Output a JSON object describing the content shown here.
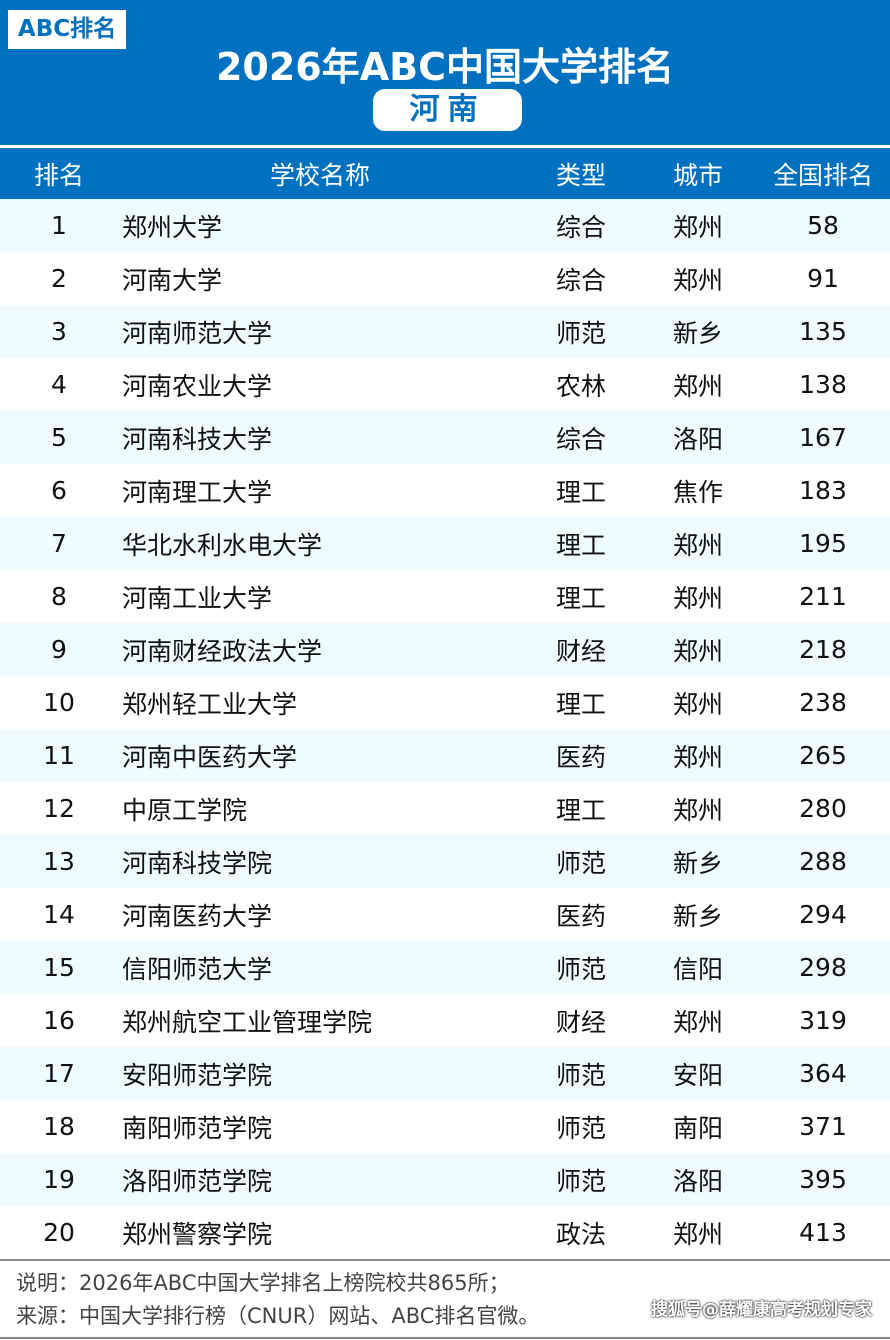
{
  "logo": "ABC排名",
  "title": "2026年ABC中国大学排名",
  "province": "河南",
  "columns": [
    "排名",
    "学校名称",
    "类型",
    "城市",
    "全国排名"
  ],
  "rows": [
    [
      "1",
      "郑州大学",
      "综合",
      "郑州",
      "58"
    ],
    [
      "2",
      "河南大学",
      "综合",
      "郑州",
      "91"
    ],
    [
      "3",
      "河南师范大学",
      "师范",
      "新乡",
      "135"
    ],
    [
      "4",
      "河南农业大学",
      "农林",
      "郑州",
      "138"
    ],
    [
      "5",
      "河南科技大学",
      "综合",
      "洛阳",
      "167"
    ],
    [
      "6",
      "河南理工大学",
      "理工",
      "焦作",
      "183"
    ],
    [
      "7",
      "华北水利水电大学",
      "理工",
      "郑州",
      "195"
    ],
    [
      "8",
      "河南工业大学",
      "理工",
      "郑州",
      "211"
    ],
    [
      "9",
      "河南财经政法大学",
      "财经",
      "郑州",
      "218"
    ],
    [
      "10",
      "郑州轻工业大学",
      "理工",
      "郑州",
      "238"
    ],
    [
      "11",
      "河南中医药大学",
      "医药",
      "郑州",
      "265"
    ],
    [
      "12",
      "中原工学院",
      "理工",
      "郑州",
      "280"
    ],
    [
      "13",
      "河南科技学院",
      "师范",
      "新乡",
      "288"
    ],
    [
      "14",
      "河南医药大学",
      "医药",
      "新乡",
      "294"
    ],
    [
      "15",
      "信阳师范大学",
      "师范",
      "信阳",
      "298"
    ],
    [
      "16",
      "郑州航空工业管理学院",
      "财经",
      "郑州",
      "319"
    ],
    [
      "17",
      "安阳师范学院",
      "师范",
      "安阳",
      "364"
    ],
    [
      "18",
      "南阳师范学院",
      "师范",
      "南阳",
      "371"
    ],
    [
      "19",
      "洛阳师范学院",
      "师范",
      "洛阳",
      "395"
    ],
    [
      "20",
      "郑州警察学院",
      "政法",
      "郑州",
      "413"
    ]
  ],
  "footer": {
    "note": "说明：2026年ABC中国大学排名上榜院校共865所；",
    "source": "来源：中国大学排行榜（CNUR）网站、ABC排名官微。",
    "watermark": "搜狐号@薛耀康高考规划专家"
  },
  "colors": {
    "brand": "#0070c0",
    "stripe": "#eefbff"
  }
}
